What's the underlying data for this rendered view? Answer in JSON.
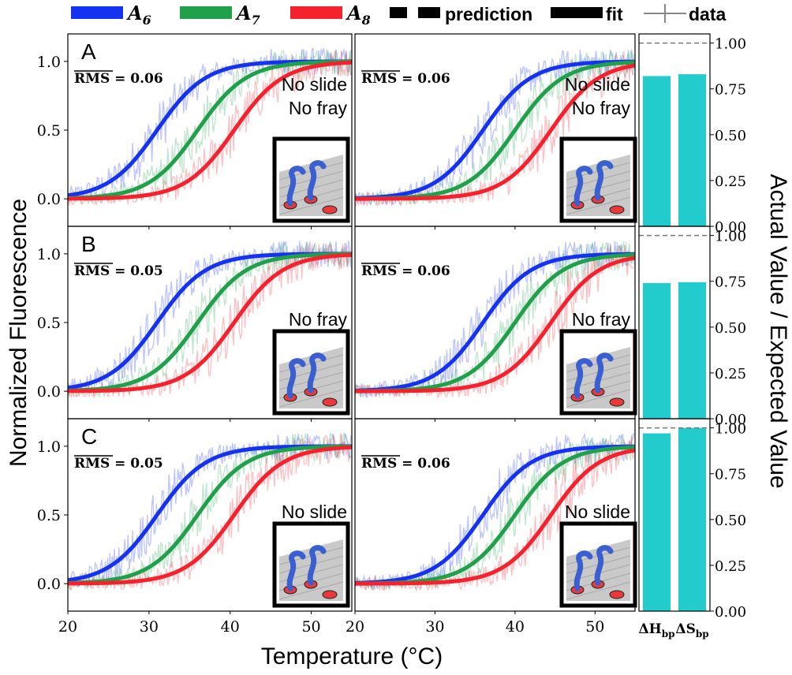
{
  "figure": {
    "legend": [
      {
        "kind": "series",
        "base": "A",
        "sub": "6",
        "color": "#1432f0"
      },
      {
        "kind": "series",
        "base": "A",
        "sub": "7",
        "color": "#20a04a"
      },
      {
        "kind": "series",
        "base": "A",
        "sub": "8",
        "color": "#f5222d"
      },
      {
        "kind": "dashed",
        "label": "prediction"
      },
      {
        "kind": "solid",
        "label": "fit"
      },
      {
        "kind": "cross",
        "label": "data"
      }
    ],
    "ylabel": "Normalized Fluorescence",
    "xlabel": "Temperature (°C)",
    "ylabel_right": "Actual Value / Expected Value",
    "colors": {
      "A6": "#1432f0",
      "A7": "#20a04a",
      "A8": "#f5222d",
      "bar": "#22cccc"
    }
  },
  "chart_data": [
    {
      "type": "line",
      "row": "A",
      "col": "left",
      "panel_letter": "A",
      "rms_label": "RMS = 0.06",
      "insets": [
        "No slide",
        "No fray"
      ],
      "x_ticks": [
        20,
        30,
        40,
        50
      ],
      "y_ticks": [
        "0.0",
        "0.5",
        "1.0"
      ],
      "xlim": [
        20,
        55
      ],
      "ylim": [
        -0.2,
        1.2
      ],
      "series": [
        {
          "name": "A6",
          "tm": 31
        },
        {
          "name": "A7",
          "tm": 36
        },
        {
          "name": "A8",
          "tm": 40.5
        }
      ]
    },
    {
      "type": "line",
      "row": "A",
      "col": "right",
      "panel_letter": "",
      "rms_label": "RMS = 0.06",
      "insets": [
        "No slide",
        "No fray"
      ],
      "x_ticks": [
        20,
        30,
        40,
        50
      ],
      "y_ticks": [],
      "xlim": [
        20,
        55
      ],
      "ylim": [
        -0.2,
        1.2
      ],
      "series": [
        {
          "name": "A6",
          "tm": 36
        },
        {
          "name": "A7",
          "tm": 40
        },
        {
          "name": "A8",
          "tm": 44.5
        }
      ]
    },
    {
      "type": "bar",
      "row": "A",
      "categories": [
        "ΔHbp",
        "ΔSbp"
      ],
      "values": [
        0.82,
        0.83
      ],
      "expected": 1.0,
      "y_ticks": [
        "0.00",
        "0.25",
        "0.50",
        "0.75",
        "1.00"
      ],
      "ylim": [
        0,
        1.05
      ]
    },
    {
      "type": "line",
      "row": "B",
      "col": "left",
      "panel_letter": "B",
      "rms_label": "RMS = 0.05",
      "insets": [
        "No fray"
      ],
      "x_ticks": [
        20,
        30,
        40,
        50
      ],
      "y_ticks": [
        "0.0",
        "0.5",
        "1.0"
      ],
      "xlim": [
        20,
        55
      ],
      "ylim": [
        -0.2,
        1.2
      ],
      "series": [
        {
          "name": "A6",
          "tm": 31
        },
        {
          "name": "A7",
          "tm": 36
        },
        {
          "name": "A8",
          "tm": 40.5
        }
      ]
    },
    {
      "type": "line",
      "row": "B",
      "col": "right",
      "panel_letter": "",
      "rms_label": "RMS = 0.06",
      "insets": [
        "No fray"
      ],
      "x_ticks": [
        20,
        30,
        40,
        50
      ],
      "y_ticks": [],
      "xlim": [
        20,
        55
      ],
      "ylim": [
        -0.2,
        1.2
      ],
      "series": [
        {
          "name": "A6",
          "tm": 36
        },
        {
          "name": "A7",
          "tm": 40
        },
        {
          "name": "A8",
          "tm": 44.5
        }
      ]
    },
    {
      "type": "bar",
      "row": "B",
      "categories": [
        "ΔHbp",
        "ΔSbp"
      ],
      "values": [
        0.74,
        0.745
      ],
      "expected": 1.0,
      "y_ticks": [
        "0.00",
        "0.25",
        "0.50",
        "0.75",
        "1.00"
      ],
      "ylim": [
        0,
        1.05
      ]
    },
    {
      "type": "line",
      "row": "C",
      "col": "left",
      "panel_letter": "C",
      "rms_label": "RMS = 0.05",
      "insets": [
        "No slide"
      ],
      "x_ticks": [
        20,
        30,
        40,
        50
      ],
      "y_ticks": [
        "0.0",
        "0.5",
        "1.0"
      ],
      "xlim": [
        20,
        55
      ],
      "ylim": [
        -0.2,
        1.2
      ],
      "series": [
        {
          "name": "A6",
          "tm": 31
        },
        {
          "name": "A7",
          "tm": 36
        },
        {
          "name": "A8",
          "tm": 40.5
        }
      ]
    },
    {
      "type": "line",
      "row": "C",
      "col": "right",
      "panel_letter": "",
      "rms_label": "RMS = 0.06",
      "insets": [
        "No slide"
      ],
      "x_ticks": [
        20,
        30,
        40,
        50
      ],
      "y_ticks": [],
      "xlim": [
        20,
        55
      ],
      "ylim": [
        -0.2,
        1.2
      ],
      "series": [
        {
          "name": "A6",
          "tm": 36
        },
        {
          "name": "A7",
          "tm": 40
        },
        {
          "name": "A8",
          "tm": 44.5
        }
      ]
    },
    {
      "type": "bar",
      "row": "C",
      "categories": [
        "ΔHbp",
        "ΔSbp"
      ],
      "values": [
        0.97,
        1.0
      ],
      "expected": 1.0,
      "y_ticks": [
        "0.00",
        "0.25",
        "0.50",
        "0.75",
        "1.00"
      ],
      "ylim": [
        0,
        1.05
      ]
    }
  ]
}
